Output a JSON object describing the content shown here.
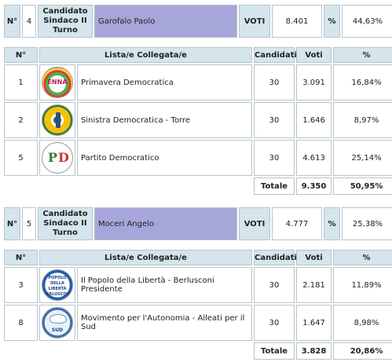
{
  "candidates": [
    {
      "num_label": "N°",
      "number": "4",
      "title": "Candidato Sindaco II Turno",
      "name": "Garofalo Paolo",
      "voti_label": "VOTI",
      "votes": "8.401",
      "pct_label": "%",
      "pct": "44,63%",
      "headers": {
        "num": "N°",
        "lista": "Lista/e Collegata/e",
        "candidati": "Candidati",
        "voti": "Voti",
        "pct": "%"
      },
      "lists": [
        {
          "n": "1",
          "logo": "logo-enna",
          "logo_text": "ENNA",
          "name": "Primavera Democratica",
          "candidati": "30",
          "voti": "3.091",
          "pct": "16,84%"
        },
        {
          "n": "2",
          "logo": "logo-sinistra-democratica",
          "name": "Sinistra Democratica - Torre",
          "candidati": "30",
          "voti": "1.646",
          "pct": "8,97%"
        },
        {
          "n": "5",
          "logo": "logo-pd",
          "logo_text": "PD",
          "name": "Partito Democratico",
          "candidati": "30",
          "voti": "4.613",
          "pct": "25,14%"
        }
      ],
      "total_label": "Totale",
      "total_votes": "9.350",
      "total_pct": "50,95%"
    },
    {
      "num_label": "N°",
      "number": "5",
      "title": "Candidato Sindaco II Turno",
      "name": "Moceri Angelo",
      "voti_label": "VOTI",
      "votes": "4.777",
      "pct_label": "%",
      "pct": "25,38%",
      "headers": {
        "num": "N°",
        "lista": "Lista/e Collegata/e",
        "candidati": "Candidati",
        "voti": "Voti",
        "pct": "%"
      },
      "lists": [
        {
          "n": "3",
          "logo": "logo-pdl",
          "logo_text": "POPOLO DELLA LIBERTÀ BERLUSCONI",
          "name": "Il Popolo della Libertà - Berlusconi Presidente",
          "candidati": "30",
          "voti": "2.181",
          "pct": "11,89%"
        },
        {
          "n": "8",
          "logo": "logo-mpa",
          "logo_text": "SUD",
          "name": "Movimento per l'Autonomia - Alleati per il Sud",
          "candidati": "30",
          "voti": "1.647",
          "pct": "8,98%"
        }
      ],
      "total_label": "Totale",
      "total_votes": "3.828",
      "total_pct": "20,86%"
    }
  ]
}
